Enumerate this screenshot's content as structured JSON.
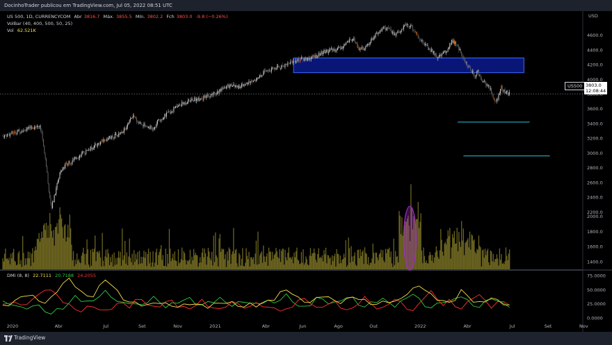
{
  "header": {
    "published": "DocinhoTrader publicou em TradingView.com, Jul 05, 2022 08:51 UTC"
  },
  "legend": {
    "symbol": "US 500, 1D, CURRENCYCOM",
    "open_label": "Abr",
    "open_value": "3816.7",
    "high_label": "Máx.",
    "high_value": "3855.5",
    "low_label": "Mín.",
    "low_value": "3802.2",
    "close_label": "Fch",
    "close_value": "3803.0",
    "change": "-9.8 (−0.26%)",
    "volbar": "VolBar (40, 400, 500, 50, 25)",
    "vol_label": "Vol",
    "vol_value": "62.521K",
    "dmi_label": "DMI (8, 8)",
    "dmi_values": [
      "22.7111",
      "20.7188",
      "24.2055"
    ]
  },
  "price_tag": {
    "symbol": "US500",
    "price": "3803.0",
    "countdown": "12:08:44"
  },
  "footer": {
    "brand": "TradingView"
  },
  "colors": {
    "background": "#000000",
    "candle_up": "#c8c8c8",
    "candle_down": "#606060",
    "candle_alert": "#ff6a00",
    "volume_bar": "#6b6420",
    "zone_fill": "#0a1a8c",
    "zone_border": "#3b6bff",
    "target_line": "#26c6da",
    "ellipse": "#a32dc8",
    "dmi_plus": "#2ecc40",
    "dmi_minus": "#ff3030",
    "adx": "#f5e050",
    "axis_text": "#b2b5be"
  },
  "chart_data": {
    "type": "line",
    "title": "US 500, 1D, CURRENCYCOM",
    "x_ticks": [
      "2020",
      "Abr",
      "Jul",
      "Set",
      "Nov",
      "2021",
      "Abr",
      "Jun",
      "Ago",
      "Out",
      "2022",
      "Abr",
      "Jul",
      "Set",
      "Nov"
    ],
    "x_tick_frac": [
      0.0,
      0.08,
      0.162,
      0.225,
      0.287,
      0.352,
      0.44,
      0.504,
      0.566,
      0.627,
      0.708,
      0.79,
      0.868,
      0.93,
      0.992
    ],
    "price_axis": {
      "label": "USD",
      "ylim": [
        2100,
        4850
      ],
      "ticks": [
        2200,
        2400,
        2600,
        2800,
        3000,
        3200,
        3400,
        3600,
        3800,
        4000,
        4200,
        4400,
        4600
      ]
    },
    "price_tick_labels": [
      "2200.0",
      "2400.0",
      "2600.0",
      "2800.0",
      "3000.0",
      "3200.0",
      "3400.0",
      "3600.0",
      "3800.0",
      "4000.0",
      "4200.0",
      "4400.0",
      "4600.0"
    ],
    "volume_axis_ticks": [
      "1400.0",
      "1600.0",
      "1800.0",
      "2000.0"
    ],
    "volume_axis_values": [
      1400,
      1600,
      1800,
      2000
    ],
    "close_series": [
      [
        0.0,
        3230
      ],
      [
        0.01,
        3250
      ],
      [
        0.02,
        3280
      ],
      [
        0.03,
        3300
      ],
      [
        0.045,
        3330
      ],
      [
        0.055,
        3360
      ],
      [
        0.062,
        3380
      ],
      [
        0.068,
        3290
      ],
      [
        0.072,
        3000
      ],
      [
        0.076,
        2800
      ],
      [
        0.08,
        2500
      ],
      [
        0.085,
        2270
      ],
      [
        0.09,
        2420
      ],
      [
        0.095,
        2600
      ],
      [
        0.1,
        2750
      ],
      [
        0.11,
        2850
      ],
      [
        0.12,
        2880
      ],
      [
        0.13,
        2950
      ],
      [
        0.145,
        3020
      ],
      [
        0.16,
        3100
      ],
      [
        0.175,
        3170
      ],
      [
        0.185,
        3200
      ],
      [
        0.2,
        3250
      ],
      [
        0.215,
        3340
      ],
      [
        0.225,
        3500
      ],
      [
        0.235,
        3420
      ],
      [
        0.245,
        3380
      ],
      [
        0.255,
        3350
      ],
      [
        0.262,
        3310
      ],
      [
        0.27,
        3440
      ],
      [
        0.28,
        3500
      ],
      [
        0.29,
        3550
      ],
      [
        0.3,
        3620
      ],
      [
        0.31,
        3660
      ],
      [
        0.32,
        3700
      ],
      [
        0.335,
        3730
      ],
      [
        0.35,
        3750
      ],
      [
        0.365,
        3800
      ],
      [
        0.38,
        3850
      ],
      [
        0.395,
        3920
      ],
      [
        0.41,
        3900
      ],
      [
        0.425,
        3950
      ],
      [
        0.44,
        4000
      ],
      [
        0.455,
        4100
      ],
      [
        0.47,
        4140
      ],
      [
        0.485,
        4180
      ],
      [
        0.5,
        4230
      ],
      [
        0.515,
        4270
      ],
      [
        0.53,
        4280
      ],
      [
        0.545,
        4320
      ],
      [
        0.56,
        4380
      ],
      [
        0.575,
        4400
      ],
      [
        0.59,
        4440
      ],
      [
        0.6,
        4510
      ],
      [
        0.61,
        4530
      ],
      [
        0.62,
        4400
      ],
      [
        0.63,
        4430
      ],
      [
        0.64,
        4550
      ],
      [
        0.65,
        4620
      ],
      [
        0.66,
        4700
      ],
      [
        0.67,
        4680
      ],
      [
        0.68,
        4610
      ],
      [
        0.69,
        4650
      ],
      [
        0.7,
        4750
      ],
      [
        0.71,
        4720
      ],
      [
        0.72,
        4600
      ],
      [
        0.73,
        4480
      ],
      [
        0.74,
        4420
      ],
      [
        0.75,
        4360
      ],
      [
        0.755,
        4270
      ],
      [
        0.76,
        4330
      ],
      [
        0.77,
        4380
      ],
      [
        0.78,
        4530
      ],
      [
        0.79,
        4450
      ],
      [
        0.8,
        4290
      ],
      [
        0.81,
        4150
      ],
      [
        0.82,
        4040
      ],
      [
        0.825,
        4130
      ],
      [
        0.83,
        4000
      ],
      [
        0.84,
        3930
      ],
      [
        0.845,
        3900
      ],
      [
        0.85,
        3800
      ],
      [
        0.855,
        3680
      ],
      [
        0.86,
        3750
      ],
      [
        0.865,
        3900
      ],
      [
        0.87,
        3830
      ],
      [
        0.875,
        3820
      ],
      [
        0.88,
        3803
      ]
    ],
    "resistance_zone": {
      "y_low": 4090,
      "y_high": 4290,
      "x_start": 0.505,
      "x_end": 0.905
    },
    "target_lines": [
      {
        "y": 3420,
        "x_start": 0.79,
        "x_end": 0.915
      },
      {
        "y": 2960,
        "x_start": 0.8,
        "x_end": 0.95
      }
    ],
    "last_price": 3803.0,
    "dmi_axis_ticks": [
      "0.0000",
      "25.0000",
      "50.0000",
      "75.0000"
    ],
    "dmi_axis_values": [
      0,
      25,
      50,
      75
    ],
    "dmi_ylim": [
      0,
      80
    ],
    "dmi_series": [
      {
        "name": "+DI",
        "values": [
          30,
          22,
          25,
          18,
          15,
          24,
          20,
          12,
          8,
          14,
          18,
          26,
          38,
          32,
          28,
          30,
          40,
          46,
          38,
          30,
          25,
          28,
          24,
          22,
          30,
          36,
          28,
          20,
          24,
          28,
          32,
          34,
          26,
          22,
          28,
          30,
          34,
          28,
          22,
          26,
          30,
          26,
          24,
          28,
          30,
          26,
          34,
          40,
          30,
          22,
          18,
          24,
          36,
          32,
          28,
          26,
          30,
          38,
          34,
          24,
          20,
          26,
          30,
          34,
          26,
          22,
          28,
          36,
          44,
          32,
          22,
          18,
          24,
          30,
          28,
          34,
          40,
          30,
          22,
          20,
          28,
          36,
          30,
          24,
          22
        ]
      },
      {
        "name": "−DI",
        "values": [
          22,
          26,
          30,
          20,
          26,
          34,
          40,
          52,
          48,
          40,
          30,
          22,
          16,
          12,
          18,
          22,
          14,
          12,
          18,
          24,
          26,
          20,
          30,
          34,
          24,
          18,
          22,
          28,
          30,
          22,
          18,
          16,
          24,
          30,
          22,
          18,
          14,
          22,
          28,
          24,
          20,
          18,
          28,
          22,
          16,
          20,
          12,
          14,
          22,
          30,
          34,
          28,
          16,
          20,
          26,
          28,
          20,
          14,
          16,
          28,
          36,
          26,
          18,
          16,
          26,
          34,
          26,
          18,
          12,
          24,
          40,
          46,
          34,
          24,
          30,
          22,
          16,
          26,
          38,
          40,
          30,
          20,
          26,
          30,
          24
        ]
      },
      {
        "name": "ADX",
        "values": [
          20,
          24,
          30,
          36,
          42,
          38,
          30,
          28,
          34,
          48,
          62,
          68,
          58,
          46,
          38,
          40,
          55,
          68,
          60,
          46,
          34,
          28,
          26,
          24,
          22,
          26,
          28,
          24,
          22,
          20,
          22,
          26,
          24,
          22,
          20,
          24,
          26,
          28,
          26,
          22,
          20,
          24,
          22,
          26,
          30,
          34,
          44,
          50,
          44,
          34,
          30,
          28,
          34,
          40,
          36,
          30,
          28,
          32,
          38,
          34,
          30,
          26,
          24,
          28,
          30,
          28,
          34,
          44,
          50,
          58,
          50,
          40,
          34,
          30,
          26,
          34,
          48,
          40,
          30,
          26,
          30,
          36,
          30,
          26,
          22
        ]
      }
    ]
  }
}
